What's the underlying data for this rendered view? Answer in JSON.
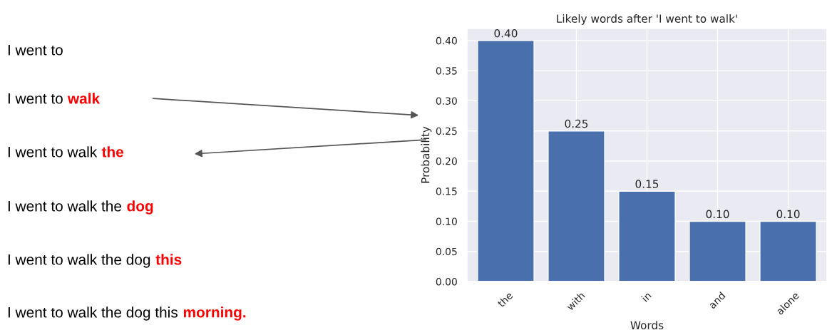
{
  "chart_data": [
    {
      "type": "other",
      "annotations": [
        "I went to",
        "I went to walk",
        "I went to walk the",
        "I went to walk the dog",
        "I went to walk the dog this",
        "I went to walk the dog this morning."
      ]
    },
    {
      "type": "bar",
      "title": "Likely words after 'I went to walk'",
      "xlabel": "Words",
      "ylabel": "Probability",
      "categories": [
        "the",
        "with",
        "in",
        "and",
        "alone"
      ],
      "values": [
        0.4,
        0.25,
        0.15,
        0.1,
        0.1
      ],
      "color": "#4a6fad",
      "value_labels": [
        "0.40",
        "0.25",
        "0.15",
        "0.10",
        "0.10"
      ],
      "ylim": [
        0,
        0.42
      ],
      "yticks": [
        {
          "value": 0,
          "label": "0.00"
        },
        {
          "value": 0.05,
          "label": "0.05"
        },
        {
          "value": 0.1,
          "label": "0.10"
        },
        {
          "value": 0.15,
          "label": "0.15"
        },
        {
          "value": 0.2,
          "label": "0.20"
        },
        {
          "value": 0.25,
          "label": "0.25"
        },
        {
          "value": 0.3,
          "label": "0.30"
        },
        {
          "value": 0.35,
          "label": "0.35"
        },
        {
          "value": 0.4,
          "label": "0.40"
        }
      ],
      "grid": true
    }
  ]
}
